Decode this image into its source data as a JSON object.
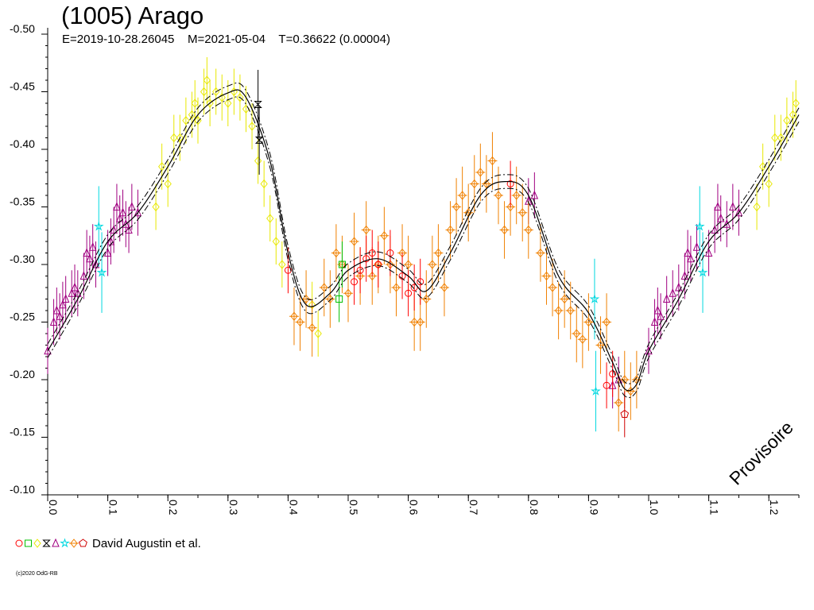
{
  "title": "(1005) Arago",
  "subtitle": "E=2019-10-28.26045    M=2021-05-04    T=0.36622 (0.00004)",
  "credit": "(c)2020 OdG-RB",
  "watermark": "Provisoire",
  "legend": {
    "label": "David Augustin et al.",
    "markers": [
      {
        "shape": "circle",
        "color": "#ff0000"
      },
      {
        "shape": "square",
        "color": "#00c000"
      },
      {
        "shape": "diamond",
        "color": "#e8e800"
      },
      {
        "shape": "hourglass",
        "color": "#000000"
      },
      {
        "shape": "triangle",
        "color": "#a00080"
      },
      {
        "shape": "star",
        "color": "#00d8e0"
      },
      {
        "shape": "cross-diamond",
        "color": "#f08000"
      },
      {
        "shape": "pentagon",
        "color": "#d00000"
      }
    ]
  },
  "chart_data": {
    "type": "scatter",
    "x_axis": {
      "range": [
        0.0,
        1.25
      ],
      "ticks": [
        {
          "v": 0.0,
          "label": "0.0"
        },
        {
          "v": 0.1,
          "label": "0.1"
        },
        {
          "v": 0.2,
          "label": "0.2"
        },
        {
          "v": 0.3,
          "label": "0.3"
        },
        {
          "v": 0.4,
          "label": "0.4"
        },
        {
          "v": 0.5,
          "label": "0.5"
        },
        {
          "v": 0.6,
          "label": "0.6"
        },
        {
          "v": 0.7,
          "label": "0.7"
        },
        {
          "v": 0.8,
          "label": "0.8"
        },
        {
          "v": 0.9,
          "label": "0.9"
        },
        {
          "v": 1.0,
          "label": "1.0"
        },
        {
          "v": 1.1,
          "label": "1.1"
        },
        {
          "v": 1.2,
          "label": "1.2"
        }
      ]
    },
    "y_axis": {
      "range": [
        -0.5,
        -0.1
      ],
      "inverted": true,
      "ticks": [
        {
          "v": -0.5,
          "label": "-0.50"
        },
        {
          "v": -0.45,
          "label": "-0.45"
        },
        {
          "v": -0.4,
          "label": "-0.40"
        },
        {
          "v": -0.35,
          "label": "-0.35"
        },
        {
          "v": -0.3,
          "label": "-0.30"
        },
        {
          "v": -0.25,
          "label": "-0.25"
        },
        {
          "v": -0.2,
          "label": "-0.20"
        },
        {
          "v": -0.15,
          "label": "-0.15"
        },
        {
          "v": -0.1,
          "label": "-0.10"
        }
      ]
    },
    "model_curve": {
      "x": [
        0.0,
        0.05,
        0.1,
        0.15,
        0.2,
        0.25,
        0.3,
        0.33,
        0.37,
        0.4,
        0.43,
        0.47,
        0.5,
        0.55,
        0.6,
        0.63,
        0.67,
        0.72,
        0.76,
        0.8,
        0.85,
        0.9,
        0.94,
        0.96,
        0.98,
        1.0,
        1.05,
        1.1,
        1.15,
        1.2,
        1.25
      ],
      "y": [
        -0.225,
        -0.27,
        -0.32,
        -0.345,
        -0.385,
        -0.43,
        -0.449,
        -0.445,
        -0.39,
        -0.31,
        -0.265,
        -0.275,
        -0.295,
        -0.305,
        -0.29,
        -0.277,
        -0.31,
        -0.36,
        -0.372,
        -0.36,
        -0.29,
        -0.258,
        -0.215,
        -0.192,
        -0.196,
        -0.225,
        -0.27,
        -0.32,
        -0.345,
        -0.385,
        -0.43
      ],
      "band": 0.006
    },
    "series": [
      {
        "marker": "triangle",
        "color": "#a00080",
        "err": 0.02,
        "points": [
          [
            0.0,
            -0.225
          ],
          [
            0.01,
            -0.25
          ],
          [
            0.015,
            -0.26
          ],
          [
            0.02,
            -0.255
          ],
          [
            0.025,
            -0.265
          ],
          [
            0.03,
            -0.27
          ],
          [
            0.04,
            -0.275
          ],
          [
            0.045,
            -0.28
          ],
          [
            0.05,
            -0.275
          ],
          [
            0.06,
            -0.29
          ],
          [
            0.065,
            -0.31
          ],
          [
            0.07,
            -0.305
          ],
          [
            0.075,
            -0.315
          ],
          [
            0.08,
            -0.3
          ],
          [
            0.1,
            -0.31
          ],
          [
            0.105,
            -0.32
          ],
          [
            0.11,
            -0.33
          ],
          [
            0.115,
            -0.35
          ],
          [
            0.12,
            -0.34
          ],
          [
            0.125,
            -0.345
          ],
          [
            0.13,
            -0.335
          ],
          [
            0.135,
            -0.33
          ],
          [
            0.14,
            -0.35
          ],
          [
            0.15,
            -0.345
          ],
          [
            0.8,
            -0.355
          ],
          [
            0.81,
            -0.36
          ],
          [
            1.0,
            -0.225
          ],
          [
            1.01,
            -0.25
          ],
          [
            1.015,
            -0.26
          ],
          [
            1.02,
            -0.255
          ],
          [
            1.03,
            -0.27
          ],
          [
            1.04,
            -0.275
          ],
          [
            1.05,
            -0.28
          ],
          [
            1.06,
            -0.29
          ],
          [
            1.065,
            -0.31
          ],
          [
            1.07,
            -0.305
          ],
          [
            1.08,
            -0.315
          ],
          [
            1.1,
            -0.31
          ],
          [
            1.11,
            -0.33
          ],
          [
            1.115,
            -0.35
          ],
          [
            1.12,
            -0.34
          ],
          [
            1.13,
            -0.335
          ],
          [
            1.14,
            -0.35
          ],
          [
            1.15,
            -0.345
          ],
          [
            0.94,
            -0.195
          ],
          [
            0.95,
            -0.2
          ]
        ]
      },
      {
        "marker": "star",
        "color": "#00d8e0",
        "err": 0.035,
        "points": [
          [
            0.085,
            -0.333
          ],
          [
            0.09,
            -0.293
          ],
          [
            0.91,
            -0.27
          ],
          [
            0.912,
            -0.19
          ],
          [
            1.085,
            -0.333
          ],
          [
            1.09,
            -0.293
          ]
        ]
      },
      {
        "marker": "diamond",
        "color": "#e8e800",
        "err": 0.02,
        "points": [
          [
            0.18,
            -0.35
          ],
          [
            0.19,
            -0.385
          ],
          [
            0.2,
            -0.37
          ],
          [
            0.21,
            -0.41
          ],
          [
            0.22,
            -0.41
          ],
          [
            0.23,
            -0.425
          ],
          [
            0.24,
            -0.43
          ],
          [
            0.245,
            -0.44
          ],
          [
            0.25,
            -0.425
          ],
          [
            0.26,
            -0.45
          ],
          [
            0.265,
            -0.46
          ],
          [
            0.27,
            -0.44
          ],
          [
            0.28,
            -0.45
          ],
          [
            0.29,
            -0.445
          ],
          [
            0.3,
            -0.44
          ],
          [
            0.31,
            -0.45
          ],
          [
            0.32,
            -0.445
          ],
          [
            0.33,
            -0.435
          ],
          [
            0.34,
            -0.42
          ],
          [
            0.35,
            -0.39
          ],
          [
            0.36,
            -0.37
          ],
          [
            0.37,
            -0.34
          ],
          [
            0.38,
            -0.32
          ],
          [
            0.39,
            -0.3
          ],
          [
            0.44,
            -0.265
          ],
          [
            0.45,
            -0.24
          ],
          [
            1.18,
            -0.35
          ],
          [
            1.19,
            -0.385
          ],
          [
            1.2,
            -0.37
          ],
          [
            1.21,
            -0.41
          ],
          [
            1.22,
            -0.41
          ],
          [
            1.23,
            -0.425
          ],
          [
            1.24,
            -0.43
          ],
          [
            1.245,
            -0.44
          ]
        ]
      },
      {
        "marker": "hourglass",
        "color": "#000000",
        "err": 0.03,
        "points": [
          [
            0.35,
            -0.439
          ],
          [
            0.352,
            -0.408
          ]
        ]
      },
      {
        "marker": "cross-diamond",
        "color": "#f08000",
        "err": 0.025,
        "points": [
          [
            0.41,
            -0.255
          ],
          [
            0.42,
            -0.25
          ],
          [
            0.43,
            -0.27
          ],
          [
            0.44,
            -0.245
          ],
          [
            0.46,
            -0.28
          ],
          [
            0.47,
            -0.27
          ],
          [
            0.48,
            -0.31
          ],
          [
            0.49,
            -0.3
          ],
          [
            0.5,
            -0.275
          ],
          [
            0.51,
            -0.32
          ],
          [
            0.52,
            -0.29
          ],
          [
            0.53,
            -0.33
          ],
          [
            0.54,
            -0.29
          ],
          [
            0.55,
            -0.3
          ],
          [
            0.56,
            -0.325
          ],
          [
            0.57,
            -0.3
          ],
          [
            0.58,
            -0.28
          ],
          [
            0.59,
            -0.31
          ],
          [
            0.6,
            -0.3
          ],
          [
            0.61,
            -0.25
          ],
          [
            0.62,
            -0.25
          ],
          [
            0.63,
            -0.27
          ],
          [
            0.64,
            -0.3
          ],
          [
            0.65,
            -0.31
          ],
          [
            0.66,
            -0.28
          ],
          [
            0.67,
            -0.33
          ],
          [
            0.68,
            -0.35
          ],
          [
            0.69,
            -0.36
          ],
          [
            0.7,
            -0.345
          ],
          [
            0.71,
            -0.37
          ],
          [
            0.72,
            -0.38
          ],
          [
            0.73,
            -0.37
          ],
          [
            0.74,
            -0.39
          ],
          [
            0.75,
            -0.36
          ],
          [
            0.76,
            -0.33
          ],
          [
            0.77,
            -0.35
          ],
          [
            0.78,
            -0.36
          ],
          [
            0.79,
            -0.345
          ],
          [
            0.8,
            -0.33
          ],
          [
            0.82,
            -0.31
          ],
          [
            0.83,
            -0.29
          ],
          [
            0.84,
            -0.28
          ],
          [
            0.85,
            -0.26
          ],
          [
            0.86,
            -0.27
          ],
          [
            0.87,
            -0.26
          ],
          [
            0.88,
            -0.24
          ],
          [
            0.89,
            -0.235
          ],
          [
            0.9,
            -0.25
          ],
          [
            0.92,
            -0.23
          ],
          [
            0.93,
            -0.25
          ],
          [
            0.95,
            -0.18
          ],
          [
            0.96,
            -0.2
          ],
          [
            0.97,
            -0.19
          ],
          [
            0.98,
            -0.2
          ]
        ]
      },
      {
        "marker": "circle",
        "color": "#ff0000",
        "err": 0.02,
        "points": [
          [
            0.4,
            -0.295
          ],
          [
            0.51,
            -0.285
          ],
          [
            0.52,
            -0.295
          ],
          [
            0.53,
            -0.305
          ],
          [
            0.54,
            -0.31
          ],
          [
            0.55,
            -0.3
          ],
          [
            0.57,
            -0.31
          ],
          [
            0.59,
            -0.29
          ],
          [
            0.6,
            -0.275
          ],
          [
            0.61,
            -0.28
          ],
          [
            0.62,
            -0.285
          ],
          [
            0.77,
            -0.37
          ],
          [
            0.93,
            -0.195
          ],
          [
            0.94,
            -0.205
          ]
        ]
      },
      {
        "marker": "square",
        "color": "#00c000",
        "err": 0.02,
        "points": [
          [
            0.485,
            -0.27
          ],
          [
            0.49,
            -0.3
          ]
        ]
      },
      {
        "marker": "pentagon",
        "color": "#d00000",
        "err": 0.02,
        "points": [
          [
            0.96,
            -0.17
          ]
        ]
      }
    ]
  }
}
